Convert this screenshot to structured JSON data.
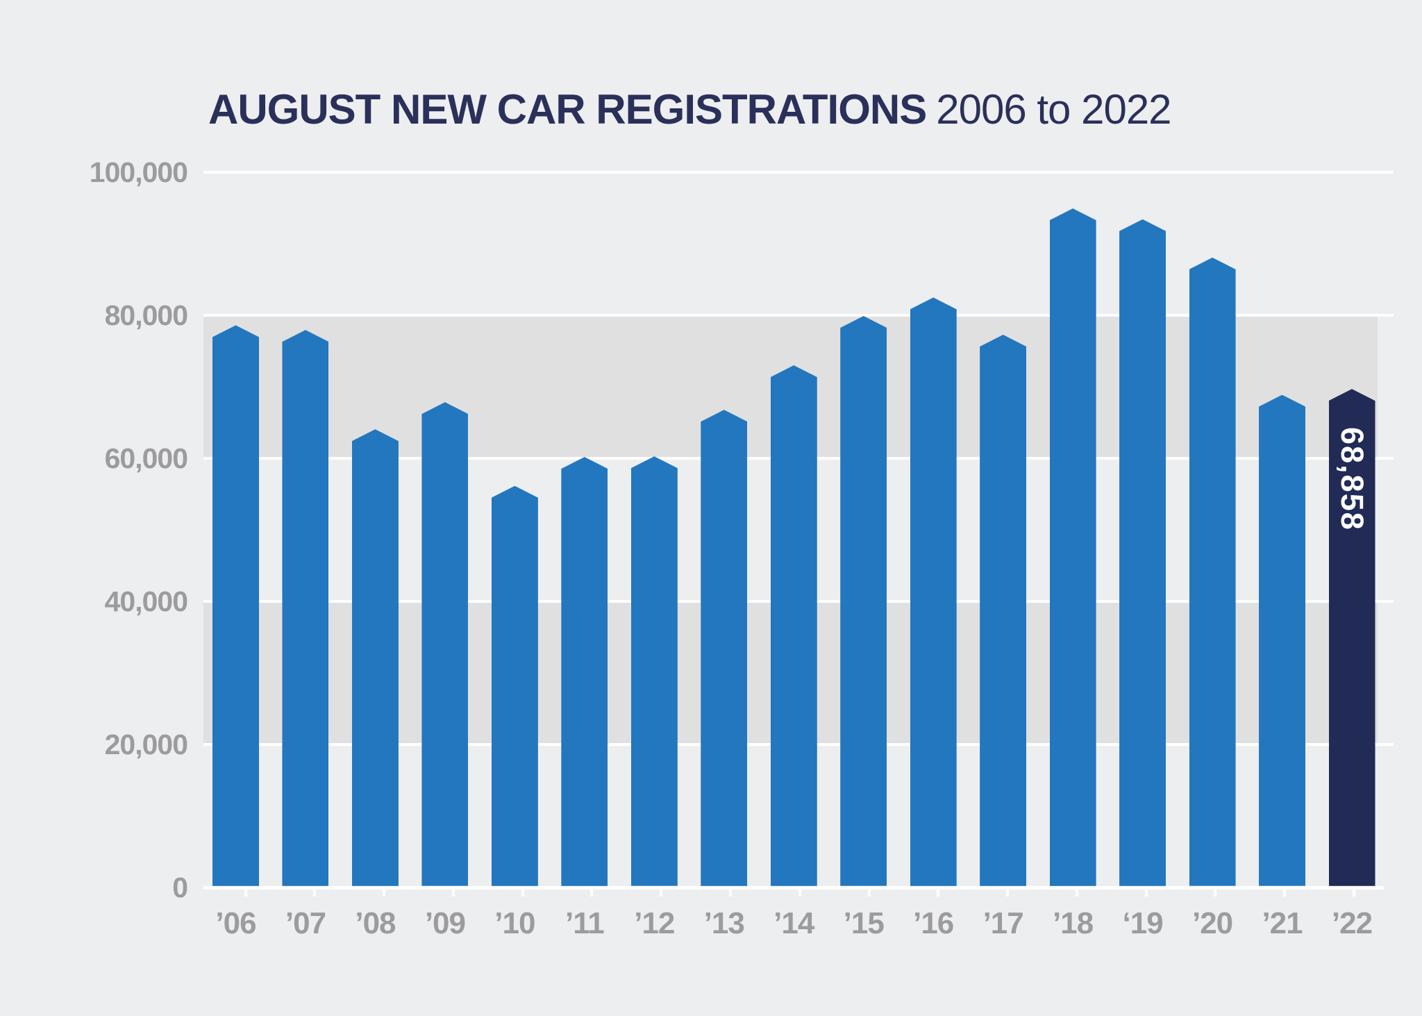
{
  "title": {
    "main": "AUGUST NEW CAR REGISTRATIONS",
    "period": "2006 to 2022"
  },
  "chart_data": {
    "type": "bar",
    "title": "AUGUST NEW CAR REGISTRATIONS 2006 to 2022",
    "xlabel": "",
    "ylabel": "",
    "ylim": [
      0,
      100000
    ],
    "y_tick_step": 20000,
    "y_ticks": [
      "0",
      "20,000",
      "40,000",
      "60,000",
      "80,000",
      "100,000"
    ],
    "categories": [
      "’06",
      "’07",
      "’08",
      "’09",
      "’10",
      "’11",
      "’12",
      "’13",
      "’14",
      "’15",
      "’16",
      "’17",
      "’18",
      "‘19",
      "’20",
      "’21",
      "’22"
    ],
    "years": [
      2006,
      2007,
      2008,
      2009,
      2010,
      2011,
      2012,
      2013,
      2014,
      2015,
      2016,
      2017,
      2018,
      2019,
      2020,
      2021,
      2022
    ],
    "values": [
      77765,
      77099,
      63225,
      67006,
      55305,
      59346,
      59433,
      65937,
      72163,
      79060,
      81640,
      76433,
      94094,
      92573,
      87226,
      68033,
      68858
    ],
    "highlight": {
      "year": 2022,
      "value_label": "68,858"
    },
    "legend": "none",
    "grid": "horizontal white gridlines every 20,000 with alternating gray bands (20k-40k and 60k-80k)",
    "colors": {
      "background": "#EDEEF0",
      "band": "#E1E0E1",
      "gridline": "#FFFFFF",
      "bar": "#2377BE",
      "bar_highlight": "#212B55",
      "axis_label": "#9C9C9F",
      "title": "#2A3059",
      "value_label": "#FFFFFF"
    }
  }
}
